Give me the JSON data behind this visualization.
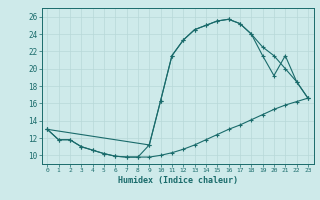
{
  "xlabel": "Humidex (Indice chaleur)",
  "xlim": [
    -0.5,
    23.5
  ],
  "ylim": [
    9,
    27
  ],
  "xticks": [
    0,
    1,
    2,
    3,
    4,
    5,
    6,
    7,
    8,
    9,
    10,
    11,
    12,
    13,
    14,
    15,
    16,
    17,
    18,
    19,
    20,
    21,
    22,
    23
  ],
  "yticks": [
    10,
    12,
    14,
    16,
    18,
    20,
    22,
    24,
    26
  ],
  "bg_color": "#ceeaea",
  "grid_color": "#b8d8d8",
  "line_color": "#1a6b6b",
  "line1_x": [
    0,
    1,
    2,
    3,
    4,
    5,
    6,
    7,
    8,
    9,
    10,
    11,
    12,
    13,
    14,
    15,
    16,
    17,
    18,
    19,
    20,
    21,
    22,
    23
  ],
  "line1_y": [
    13.0,
    11.8,
    11.8,
    11.0,
    10.6,
    10.2,
    9.9,
    9.8,
    9.8,
    9.8,
    10.0,
    10.3,
    10.7,
    11.2,
    11.8,
    12.4,
    13.0,
    13.5,
    14.1,
    14.7,
    15.3,
    15.8,
    16.2,
    16.6
  ],
  "line2_x": [
    0,
    1,
    2,
    3,
    4,
    5,
    6,
    7,
    8,
    9,
    10,
    11,
    12,
    13,
    14,
    15,
    16,
    17,
    18,
    19,
    20,
    21,
    22,
    23
  ],
  "line2_y": [
    13.0,
    11.8,
    11.8,
    11.0,
    10.6,
    10.2,
    9.9,
    9.8,
    9.8,
    11.2,
    16.3,
    21.5,
    23.3,
    24.5,
    25.0,
    25.5,
    25.7,
    25.2,
    24.0,
    22.5,
    21.5,
    20.0,
    18.5,
    16.6
  ],
  "line3_x": [
    0,
    9,
    10,
    11,
    12,
    13,
    14,
    15,
    16,
    17,
    18,
    19,
    20,
    21,
    22,
    23
  ],
  "line3_y": [
    13.0,
    11.2,
    16.3,
    21.5,
    23.3,
    24.5,
    25.0,
    25.5,
    25.7,
    25.2,
    24.0,
    21.5,
    19.2,
    21.5,
    18.5,
    16.6
  ]
}
